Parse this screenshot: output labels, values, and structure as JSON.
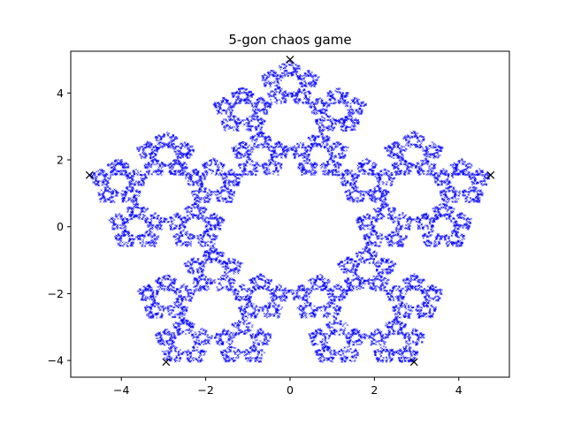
{
  "chart_data": {
    "type": "scatter",
    "title": "5-gon chaos game",
    "xlabel": "",
    "ylabel": "",
    "xlim": [
      -5.2,
      5.2
    ],
    "ylim": [
      -4.5,
      5.25
    ],
    "xticks": [
      -4,
      -2,
      0,
      2,
      4
    ],
    "xtick_labels": [
      "−4",
      "−2",
      "0",
      "2",
      "4"
    ],
    "yticks": [
      -4,
      -2,
      0,
      2,
      4
    ],
    "ytick_labels": [
      "−4",
      "−2",
      "0",
      "2",
      "4"
    ],
    "grid": false,
    "legend": "none",
    "series": [
      {
        "marker": "x",
        "color": "#000000",
        "x": [
          0.0,
          4.755,
          2.939,
          -2.939,
          -4.755
        ],
        "y": [
          5.0,
          1.545,
          -4.045,
          -4.045,
          1.545
        ]
      }
    ],
    "scatter_color": "#0000ff",
    "chaos_game": {
      "ratio": 0.618
    }
  }
}
